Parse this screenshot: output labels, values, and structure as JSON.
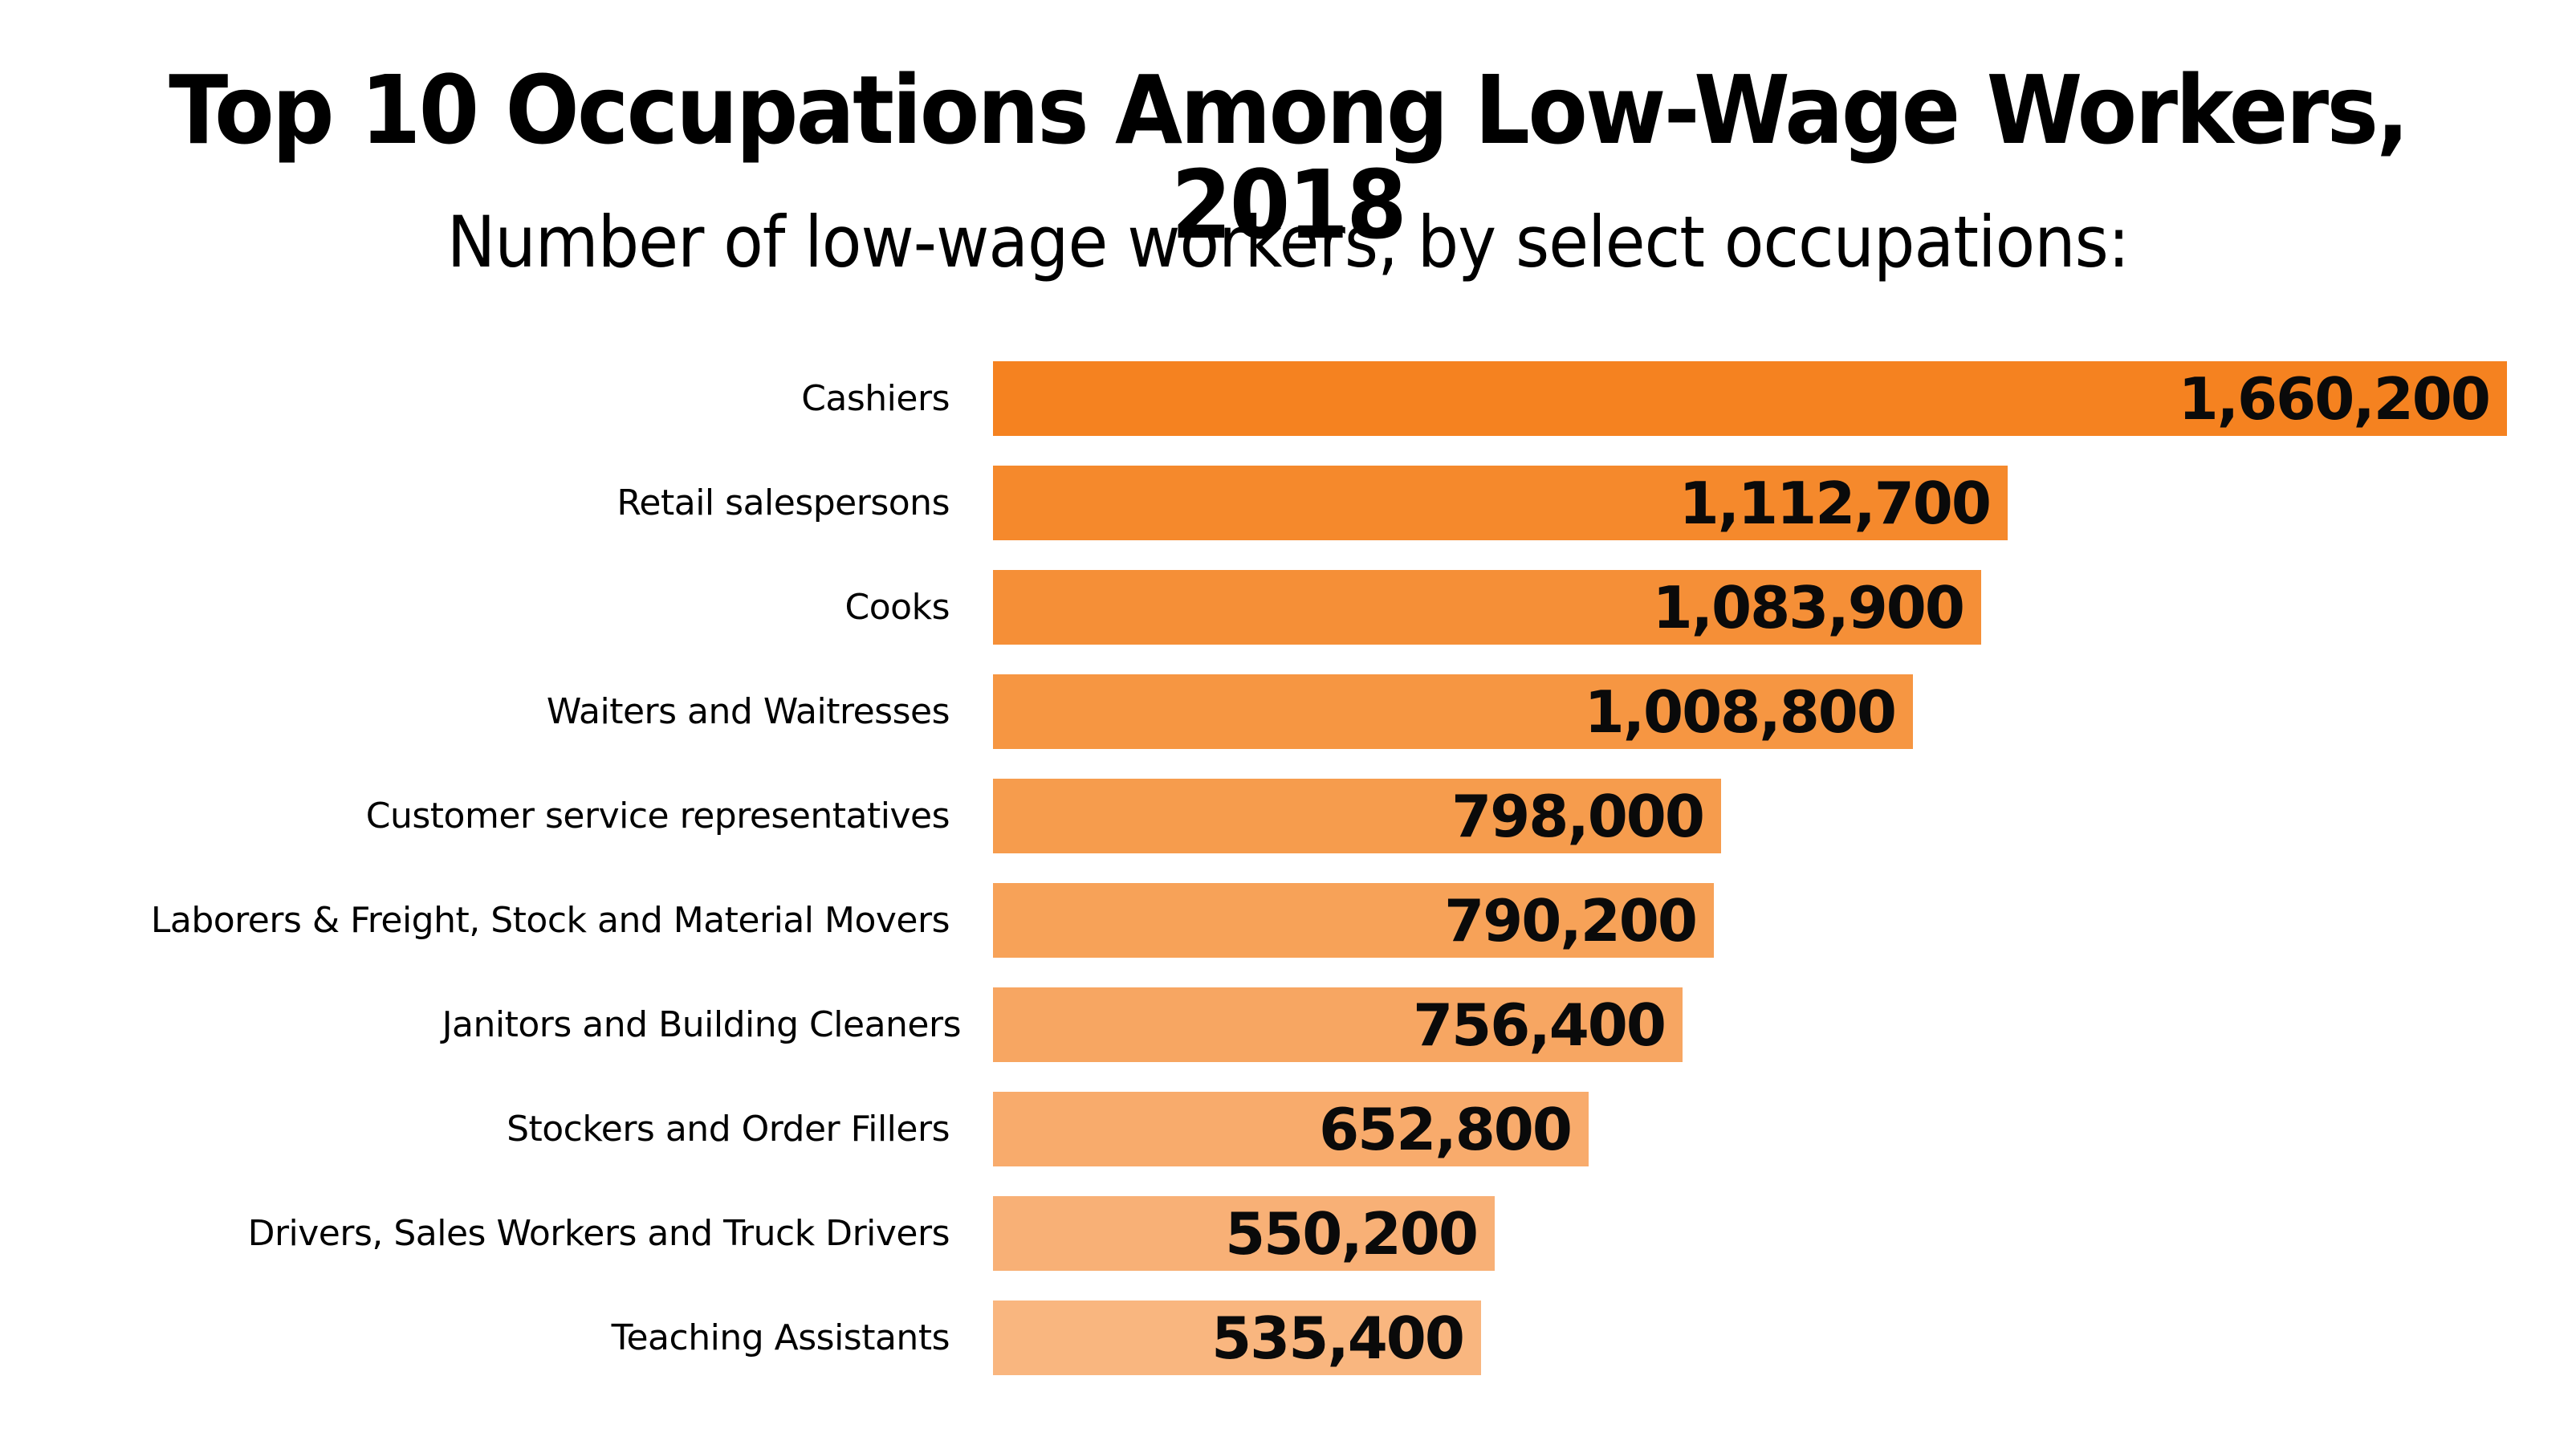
{
  "header": {
    "title": "Top 10 Occupations Among Low-Wage Workers, 2018",
    "subtitle": "Number of low-wage workers, by select occupations:"
  },
  "bars": [
    {
      "label": "Cashiers",
      "value": 1660200,
      "display": "1,660,200",
      "color": "#F58220"
    },
    {
      "label": "Retail salespersons",
      "value": 1112700,
      "display": "1,112,700",
      "color": "#F5892C"
    },
    {
      "label": "Cooks",
      "value": 1083900,
      "display": "1,083,900",
      "color": "#F58F37"
    },
    {
      "label": "Waiters and Waitresses",
      "value": 1008800,
      "display": "1,008,800",
      "color": "#F69642"
    },
    {
      "label": "Customer service representatives",
      "value": 798000,
      "display": "798,000",
      "color": "#F69C4D"
    },
    {
      "label": "Laborers & Freight, Stock and Material Movers",
      "value": 790200,
      "display": "790,200",
      "color": "#F7A258"
    },
    {
      "label": "Janitors and Building Cleaners",
      "value": 756400,
      "display": "756,400",
      "color": "#F7A662"
    },
    {
      "label": "Stockers and Order Fillers",
      "value": 652800,
      "display": "652,800",
      "color": "#F8AB6C"
    },
    {
      "label": "Drivers, Sales Workers and Truck Drivers",
      "value": 550200,
      "display": "550,200",
      "color": "#F8B076"
    },
    {
      "label": "Teaching Assistants",
      "value": 535400,
      "display": "535,400",
      "color": "#F9B67F"
    }
  ],
  "chart_data": {
    "type": "bar",
    "orientation": "horizontal",
    "title": "Top 10 Occupations Among Low-Wage Workers, 2018",
    "subtitle": "Number of low-wage workers, by select occupations:",
    "categories": [
      "Cashiers",
      "Retail salespersons",
      "Cooks",
      "Waiters and Waitresses",
      "Customer service representatives",
      "Laborers & Freight, Stock and Material Movers",
      "Janitors and Building Cleaners",
      "Stockers and Order Fillers",
      "Drivers, Sales Workers and Truck Drivers",
      "Teaching Assistants"
    ],
    "values": [
      1660200,
      1112700,
      1083900,
      1008800,
      798000,
      790200,
      756400,
      652800,
      550200,
      535400
    ],
    "xlabel": "",
    "ylabel": "",
    "xlim": [
      0,
      1660200
    ],
    "grid": false,
    "legend": "none",
    "data_labels": "inside-end",
    "bar_color_gradient": [
      "#F58220",
      "#F9B67F"
    ]
  }
}
